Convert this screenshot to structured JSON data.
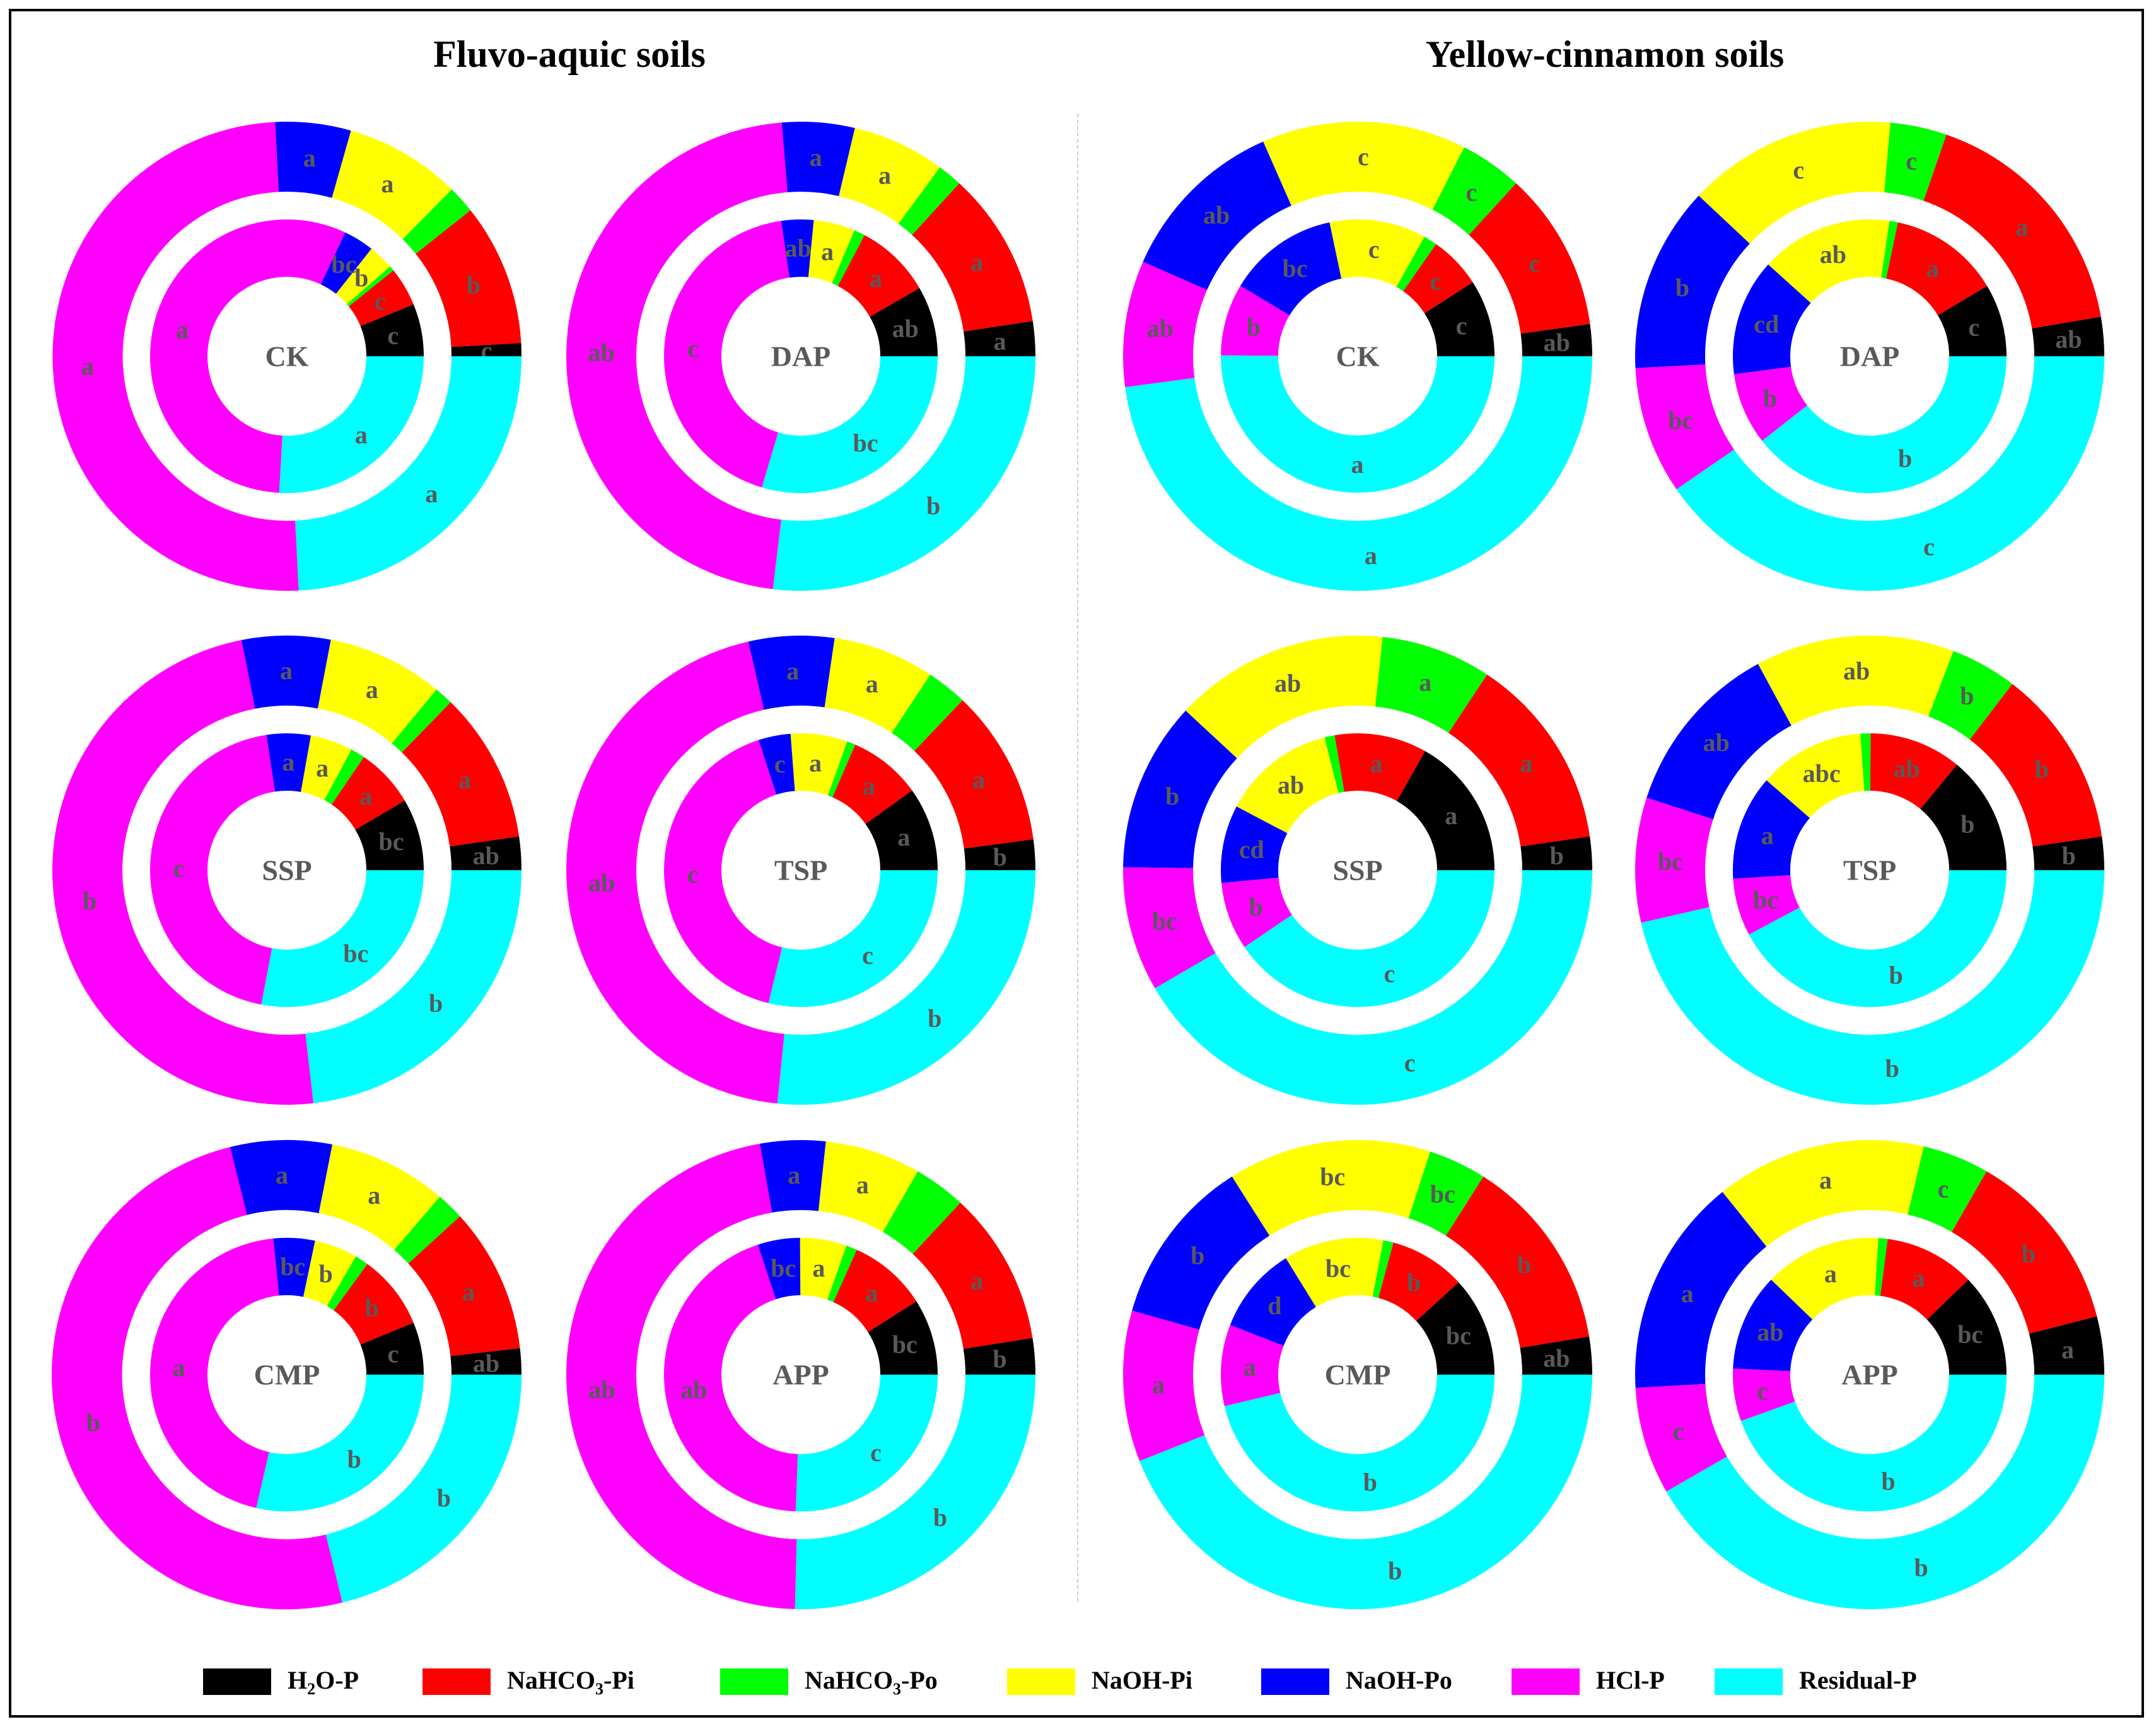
{
  "panel_titles": {
    "left": "Fluvo-aquic soils",
    "right": "Yellow-cinnamon soils"
  },
  "legend": [
    {
      "name": "H2O-P",
      "pre": "H",
      "sub": "2",
      "post": "O-P",
      "color": "#000000"
    },
    {
      "name": "NaHCO3-Pi",
      "pre": "NaHCO",
      "sub": "3",
      "post": "-Pi",
      "color": "#ff0000"
    },
    {
      "name": "NaHCO3-Po",
      "pre": "NaHCO",
      "sub": "3",
      "post": "-Po",
      "color": "#00ff00"
    },
    {
      "name": "NaOH-Pi",
      "pre": "NaOH-Pi",
      "sub": "",
      "post": "",
      "color": "#ffff00"
    },
    {
      "name": "NaOH-Po",
      "pre": "NaOH-Po",
      "sub": "",
      "post": "",
      "color": "#0000ff"
    },
    {
      "name": "HCl-P",
      "pre": "HCl-P",
      "sub": "",
      "post": "",
      "color": "#ff00ff"
    },
    {
      "name": "Residual-P",
      "pre": "Residual-P",
      "sub": "",
      "post": "",
      "color": "#00ffff"
    }
  ],
  "chart_data": {
    "type": "pie",
    "subtype": "nested donut (inner ring and outer ring per treatment)",
    "unit": "percent of total P",
    "fractions": [
      "H2O-P",
      "NaHCO3-Pi",
      "NaHCO3-Po",
      "NaOH-Pi",
      "NaOH-Po",
      "HCl-P",
      "Residual-P"
    ],
    "charts": [
      {
        "soil": "Fluvo-aquic soils",
        "treatment": "CK",
        "inner": {
          "values": [
            6.2,
            4.6,
            0.6,
            3.0,
            3.6,
            56.1,
            25.9
          ],
          "labels": [
            "c",
            "c",
            "",
            "b",
            "bc",
            "a",
            "a"
          ]
        },
        "outer": {
          "values": [
            0.9,
            9.8,
            1.9,
            8.0,
            5.2,
            50.0,
            24.2
          ],
          "labels": [
            "c",
            "b",
            "",
            "a",
            "a",
            "a",
            "a"
          ]
        }
      },
      {
        "soil": "Fluvo-aquic soils",
        "treatment": "DAP",
        "inner": {
          "values": [
            8.3,
            9.0,
            1.3,
            4.9,
            3.8,
            43.1,
            29.6
          ],
          "labels": [
            "ab",
            "a",
            "",
            "a",
            "ab",
            "c",
            "bc"
          ]
        },
        "outer": {
          "values": [
            2.4,
            10.8,
            1.7,
            6.4,
            5.0,
            46.8,
            26.9
          ],
          "labels": [
            "a",
            "a",
            "",
            "a",
            "a",
            "ab",
            "b"
          ]
        }
      },
      {
        "soil": "Fluvo-aquic soils",
        "treatment": "SSP",
        "inner": {
          "values": [
            8.5,
            7.0,
            1.7,
            5.0,
            5.2,
            44.6,
            28.0
          ],
          "labels": [
            "bc",
            "a",
            "",
            "a",
            "a",
            "c",
            "bc"
          ]
        },
        "outer": {
          "values": [
            2.3,
            10.4,
            1.3,
            8.0,
            6.1,
            48.7,
            23.2
          ],
          "labels": [
            "ab",
            "a",
            "",
            "a",
            "a",
            "b",
            "b"
          ]
        }
      },
      {
        "soil": "Fluvo-aquic soils",
        "treatment": "TSP",
        "inner": {
          "values": [
            9.9,
            8.6,
            1.0,
            6.7,
            3.8,
            41.2,
            28.8
          ],
          "labels": [
            "a",
            "a",
            "",
            "a",
            "c",
            "c",
            "c"
          ]
        },
        "outer": {
          "values": [
            2.1,
            10.8,
            2.8,
            7.0,
            5.9,
            44.8,
            26.6
          ],
          "labels": [
            "b",
            "a",
            "",
            "a",
            "a",
            "ab",
            "b"
          ]
        }
      },
      {
        "soil": "Fluvo-aquic soils",
        "treatment": "CMP",
        "inner": {
          "values": [
            6.2,
            8.8,
            1.6,
            5.1,
            4.9,
            44.8,
            28.6
          ],
          "labels": [
            "c",
            "b",
            "",
            "b",
            "bc",
            "a",
            "b"
          ]
        },
        "outer": {
          "values": [
            1.8,
            10.0,
            1.9,
            8.2,
            7.0,
            49.9,
            21.2
          ],
          "labels": [
            "ab",
            "a",
            "",
            "a",
            "a",
            "b",
            "b"
          ]
        }
      },
      {
        "soil": "Fluvo-aquic soils",
        "treatment": "APP",
        "inner": {
          "values": [
            9.0,
            9.3,
            1.3,
            5.5,
            5.0,
            44.3,
            25.6
          ],
          "labels": [
            "bc",
            "a",
            "",
            "a",
            "bc",
            "ab",
            "c"
          ]
        },
        "outer": {
          "values": [
            2.5,
            10.6,
            3.6,
            6.6,
            4.5,
            46.8,
            25.4
          ],
          "labels": [
            "b",
            "a",
            "",
            "a",
            "a",
            "ab",
            "b"
          ]
        }
      },
      {
        "soil": "Yellow-cinnamon soils",
        "treatment": "CK",
        "inner": {
          "values": [
            9.1,
            6.2,
            1.6,
            11.4,
            13.1,
            8.5,
            50.1
          ],
          "labels": [
            "c",
            "c",
            "",
            "c",
            "bc",
            "b",
            "a"
          ]
        },
        "outer": {
          "values": [
            2.2,
            11.0,
            4.3,
            14.1,
            11.8,
            8.7,
            47.9
          ],
          "labels": [
            "ab",
            "c",
            "c",
            "c",
            "ab",
            "ab",
            "a"
          ]
        }
      },
      {
        "soil": "Yellow-cinnamon soils",
        "treatment": "DAP",
        "inner": {
          "values": [
            8.6,
            13.1,
            1.0,
            15.6,
            13.8,
            8.5,
            39.4
          ],
          "labels": [
            "c",
            "a",
            "",
            "ab",
            "cd",
            "b",
            "b"
          ]
        },
        "outer": {
          "values": [
            2.7,
            17.0,
            3.9,
            14.4,
            12.8,
            8.8,
            40.4
          ],
          "labels": [
            "ab",
            "a",
            "c",
            "c",
            "b",
            "bc",
            "c"
          ]
        }
      },
      {
        "soil": "Yellow-cinnamon soils",
        "treatment": "SSP",
        "inner": {
          "values": [
            16.8,
            10.9,
            1.2,
            13.4,
            9.2,
            8.0,
            40.5
          ],
          "labels": [
            "a",
            "a",
            "",
            "ab",
            "cd",
            "b",
            "c"
          ]
        },
        "outer": {
          "values": [
            2.3,
            13.4,
            7.6,
            14.8,
            11.7,
            8.6,
            41.6
          ],
          "labels": [
            "b",
            "a",
            "a",
            "ab",
            "b",
            "bc",
            "c"
          ]
        }
      },
      {
        "soil": "Yellow-cinnamon soils",
        "treatment": "TSP",
        "inner": {
          "values": [
            14.0,
            10.9,
            1.2,
            12.5,
            12.4,
            6.8,
            42.2
          ],
          "labels": [
            "b",
            "ab",
            "",
            "abc",
            "a",
            "bc",
            "b"
          ]
        },
        "outer": {
          "values": [
            2.3,
            12.3,
            4.6,
            13.7,
            12.1,
            8.6,
            46.4
          ],
          "labels": [
            "b",
            "b",
            "b",
            "ab",
            "ab",
            "bc",
            "b"
          ]
        }
      },
      {
        "soil": "Yellow-cinnamon soils",
        "treatment": "CMP",
        "inner": {
          "values": [
            11.8,
            9.0,
            1.2,
            11.8,
            10.3,
            9.6,
            46.3
          ],
          "labels": [
            "bc",
            "b",
            "",
            "bc",
            "d",
            "a",
            "b"
          ]
        },
        "outer": {
          "values": [
            2.6,
            13.4,
            4.0,
            14.0,
            11.6,
            10.4,
            44.0
          ],
          "labels": [
            "ab",
            "b",
            "bc",
            "bc",
            "b",
            "a",
            "b"
          ]
        }
      },
      {
        "soil": "Yellow-cinnamon soils",
        "treatment": "APP",
        "inner": {
          "values": [
            12.2,
            10.7,
            1.1,
            13.8,
            11.5,
            6.2,
            44.5
          ],
          "labels": [
            "bc",
            "a",
            "",
            "a",
            "ab",
            "c",
            "b"
          ]
        },
        "outer": {
          "values": [
            4.0,
            12.7,
            4.6,
            14.5,
            15.1,
            7.4,
            41.7
          ],
          "labels": [
            "a",
            "b",
            "c",
            "a",
            "a",
            "c",
            "b"
          ]
        }
      }
    ]
  }
}
